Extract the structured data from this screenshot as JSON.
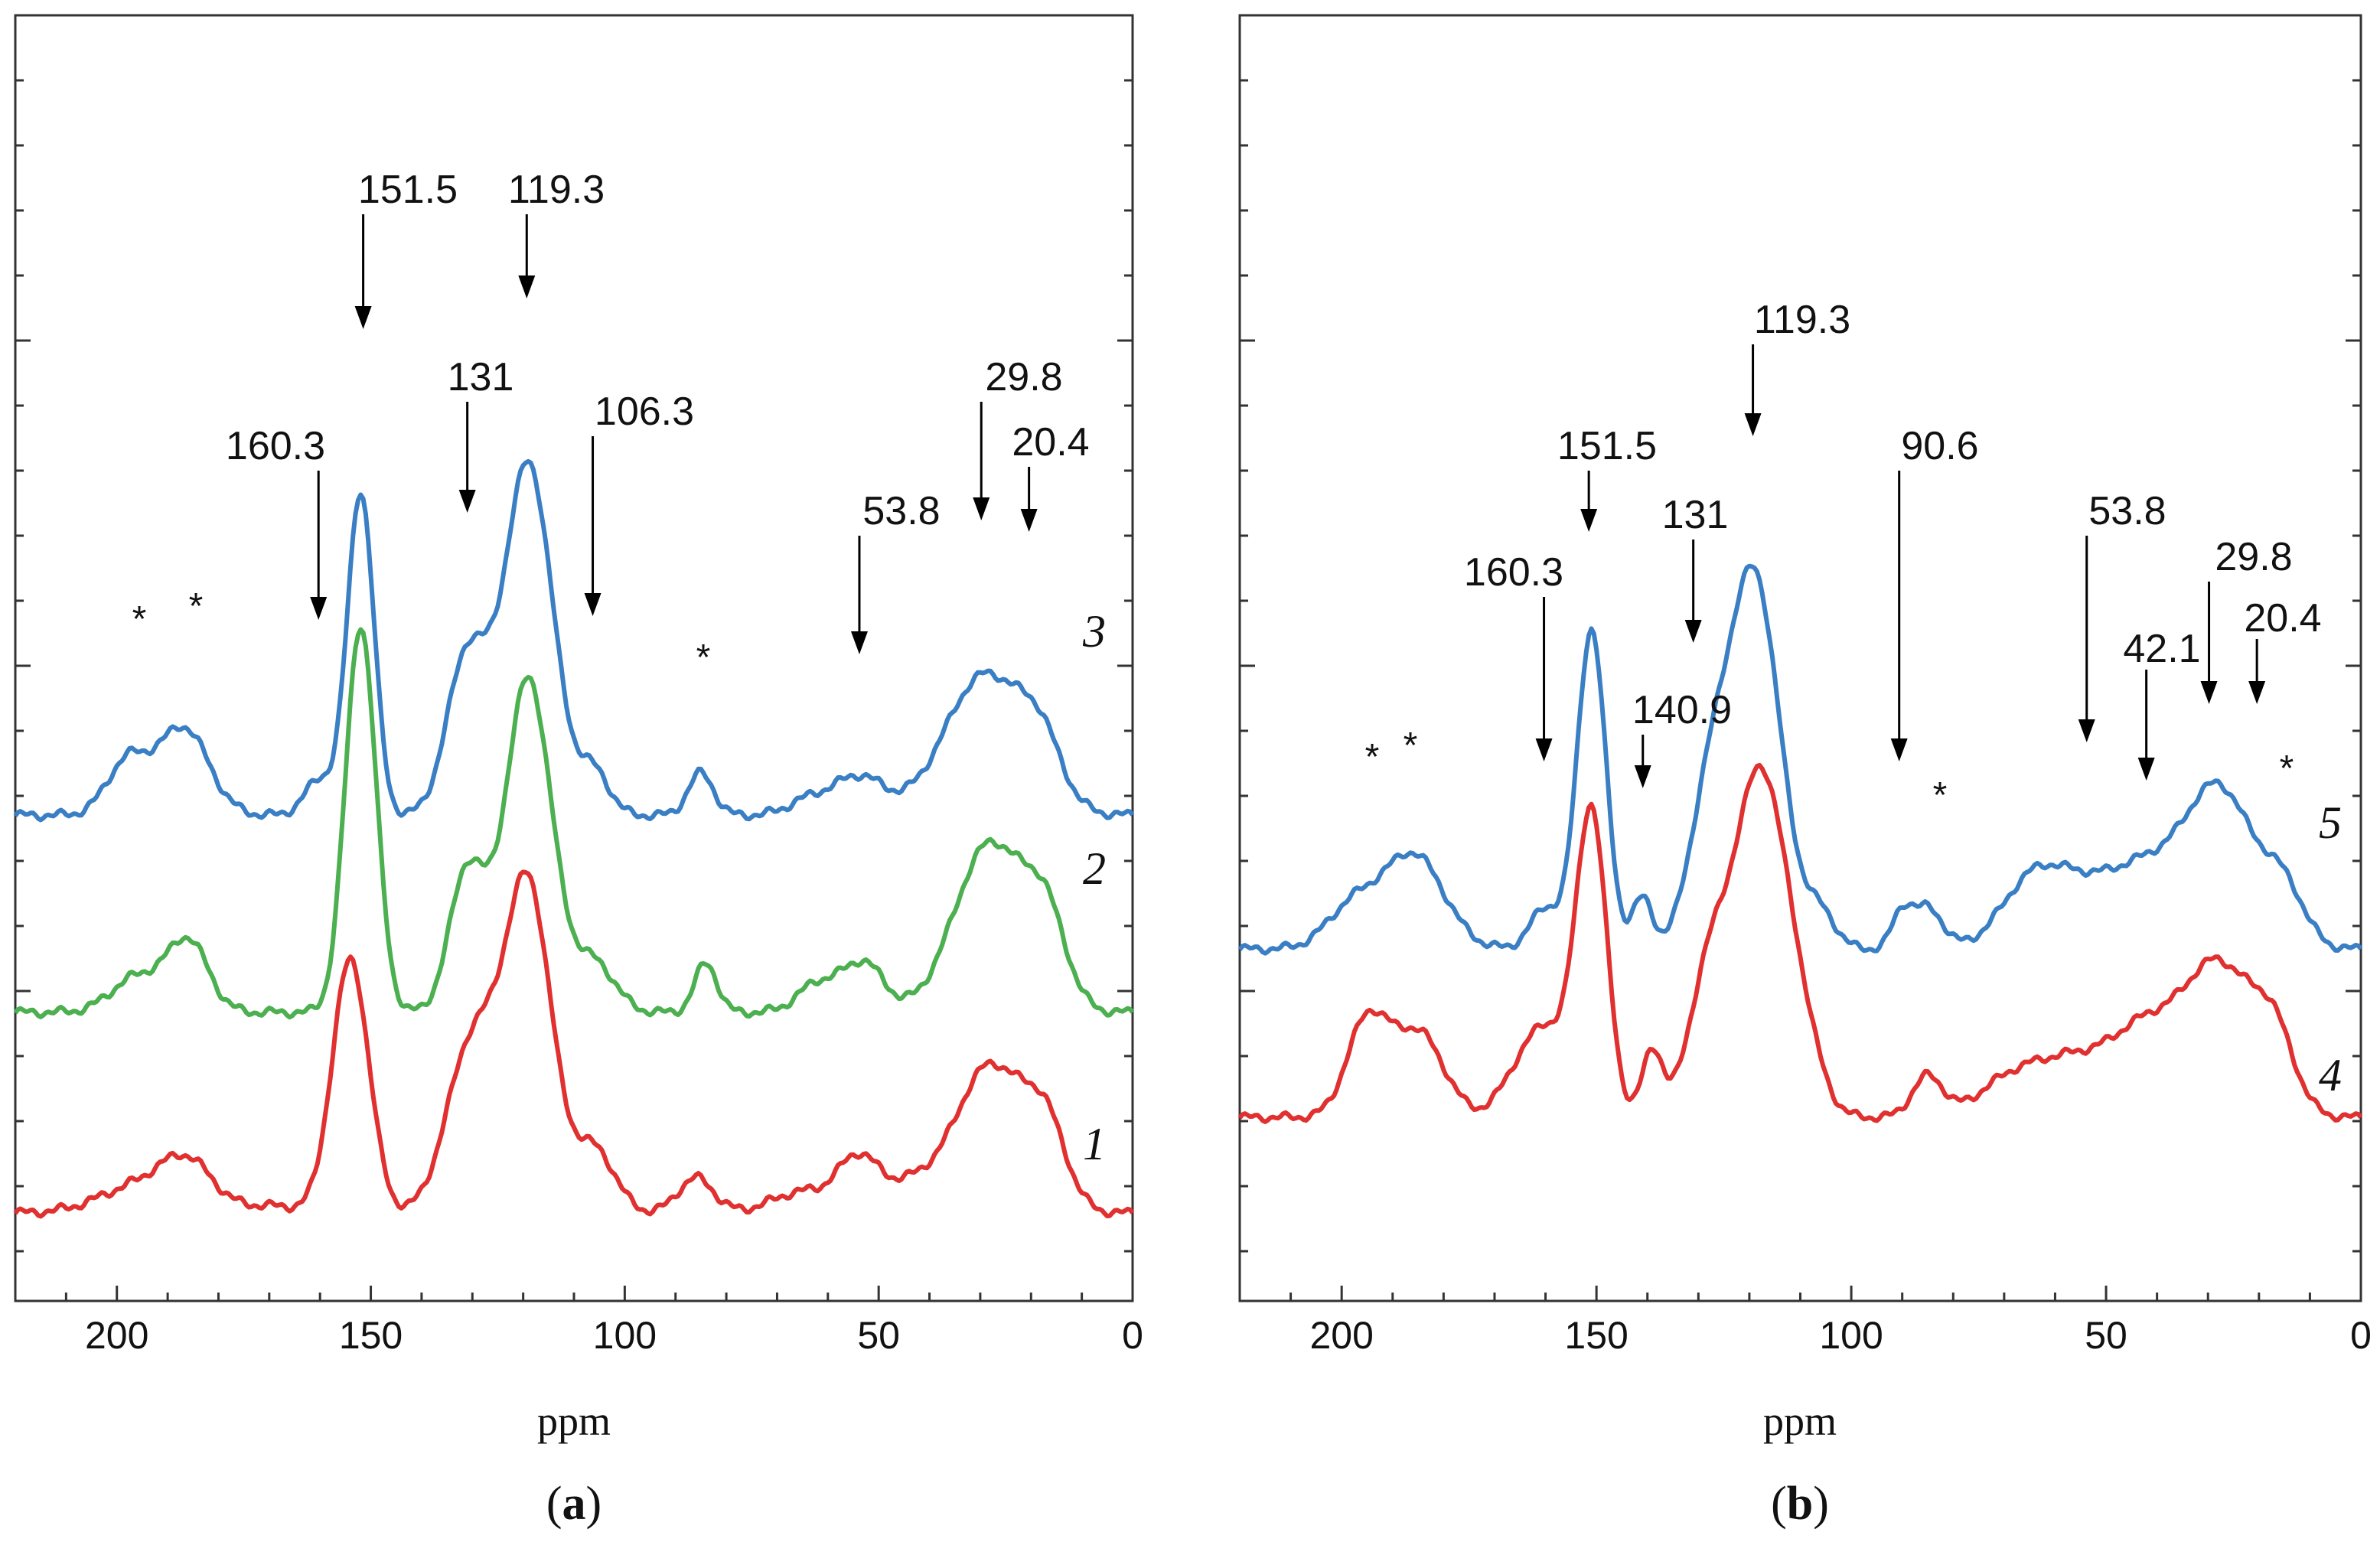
{
  "chart_data": [
    {
      "panel": "(a)",
      "panel_letter": "a",
      "type": "line",
      "xlabel": "ppm",
      "xlim": [
        220,
        0
      ],
      "x_ticks": [
        200,
        150,
        100,
        50,
        0
      ],
      "series": [
        {
          "name": "1",
          "color": "#e03030",
          "offset": 0.0,
          "peaks": [
            [
              195,
              0.08,
              8
            ],
            [
              186,
              0.12,
              5
            ],
            [
              170,
              0.02,
              6
            ],
            [
              154,
              0.72,
              3.6
            ],
            [
              130,
              0.48,
              5
            ],
            [
              119,
              0.92,
              4.6
            ],
            [
              106,
              0.18,
              4
            ],
            [
              86,
              0.1,
              3.5
            ],
            [
              65,
              0.06,
              6
            ],
            [
              54,
              0.15,
              4
            ],
            [
              44,
              0.07,
              5
            ],
            [
              28,
              0.42,
              7
            ],
            [
              17,
              0.2,
              4
            ]
          ]
        },
        {
          "name": "2",
          "color": "#4caf50",
          "offset": 0.57,
          "peaks": [
            [
              196,
              0.1,
              5
            ],
            [
              186,
              0.2,
              4
            ],
            [
              152,
              1.1,
              3
            ],
            [
              131,
              0.4,
              3.5
            ],
            [
              119,
              0.95,
              4.6
            ],
            [
              106,
              0.14,
              4
            ],
            [
              84,
              0.14,
              2.2
            ],
            [
              62,
              0.08,
              4
            ],
            [
              53,
              0.14,
              4
            ],
            [
              28,
              0.48,
              7
            ],
            [
              17,
              0.22,
              4
            ]
          ]
        },
        {
          "name": "3",
          "color": "#3a7fc4",
          "offset": 1.13,
          "peaks": [
            [
              198,
              0.15,
              4
            ],
            [
              187,
              0.25,
              5
            ],
            [
              160,
              0.1,
              3
            ],
            [
              152,
              0.92,
              2.6
            ],
            [
              131,
              0.45,
              4
            ],
            [
              119,
              1.0,
              4.8
            ],
            [
              106,
              0.12,
              3
            ],
            [
              85,
              0.12,
              2.5
            ],
            [
              64,
              0.04,
              4
            ],
            [
              54,
              0.11,
              5
            ],
            [
              29,
              0.4,
              8
            ],
            [
              18,
              0.14,
              4
            ]
          ]
        }
      ],
      "curve_labels": [
        "1",
        "2",
        "3"
      ],
      "annotations": [
        {
          "label": "151.5",
          "x": 151.5
        },
        {
          "label": "119.3",
          "x": 119.3
        },
        {
          "label": "160.3",
          "x": 160.3
        },
        {
          "label": "131",
          "x": 131
        },
        {
          "label": "106.3",
          "x": 106.3
        },
        {
          "label": "29.8",
          "x": 29.8
        },
        {
          "label": "20.4",
          "x": 20.4
        },
        {
          "label": "53.8",
          "x": 53.8
        }
      ],
      "asterisks": [
        {
          "label": "*",
          "x": 195
        },
        {
          "label": "*",
          "x": 184
        },
        {
          "label": "*",
          "x": 84
        }
      ]
    },
    {
      "panel": "(b)",
      "panel_letter": "b",
      "type": "line",
      "xlabel": "ppm",
      "xlim": [
        220,
        0
      ],
      "x_ticks": [
        200,
        150,
        100,
        50,
        0
      ],
      "series": [
        {
          "name": "4",
          "color": "#e03030",
          "offset": 0.0,
          "peaks": [
            [
              195,
              0.28,
              4
            ],
            [
              185,
              0.25,
              5
            ],
            [
              165,
              0.12,
              4
            ],
            [
              159,
              0.22,
              4
            ],
            [
              151,
              0.9,
              3
            ],
            [
              139,
              0.2,
              2
            ],
            [
              128,
              0.4,
              4
            ],
            [
              118,
              1.0,
              5
            ],
            [
              110,
              0.2,
              4
            ],
            [
              85,
              0.12,
              3
            ],
            [
              70,
              0.06,
              6
            ],
            [
              56,
              0.18,
              10
            ],
            [
              42,
              0.18,
              6
            ],
            [
              28,
              0.45,
              7
            ],
            [
              17,
              0.2,
              4
            ]
          ]
        },
        {
          "name": "5",
          "color": "#3a7fc4",
          "offset": 0.5,
          "peaks": [
            [
              198,
              0.12,
              5
            ],
            [
              186,
              0.28,
              6
            ],
            [
              160,
              0.12,
              3
            ],
            [
              151,
              0.95,
              2.8
            ],
            [
              141,
              0.15,
              2
            ],
            [
              128,
              0.4,
              4
            ],
            [
              119,
              1.1,
              5
            ],
            [
              106,
              0.1,
              3
            ],
            [
              90,
              0.1,
              2
            ],
            [
              85,
              0.12,
              3
            ],
            [
              65,
              0.16,
              6
            ],
            [
              54,
              0.18,
              8
            ],
            [
              42,
              0.16,
              6
            ],
            [
              28,
              0.48,
              7
            ],
            [
              15,
              0.15,
              4
            ]
          ]
        }
      ],
      "curve_labels": [
        "5",
        "4"
      ],
      "annotations": [
        {
          "label": "119.3",
          "x": 119.3
        },
        {
          "label": "151.5",
          "x": 151.5
        },
        {
          "label": "131",
          "x": 131
        },
        {
          "label": "90.6",
          "x": 90.6
        },
        {
          "label": "160.3",
          "x": 160.3
        },
        {
          "label": "140.9",
          "x": 140.9
        },
        {
          "label": "53.8",
          "x": 53.8
        },
        {
          "label": "29.8",
          "x": 29.8
        },
        {
          "label": "42.1",
          "x": 42.1
        },
        {
          "label": "20.4",
          "x": 20.4
        }
      ],
      "asterisks": [
        {
          "label": "*",
          "x": 195
        },
        {
          "label": "*",
          "x": 188
        },
        {
          "label": "*",
          "x": 83
        },
        {
          "label": "*",
          "x": 13
        }
      ]
    }
  ]
}
